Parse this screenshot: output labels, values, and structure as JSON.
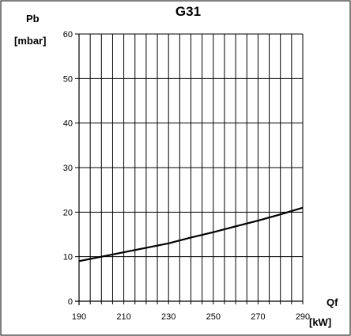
{
  "chart_data": {
    "type": "line",
    "title": "G31",
    "ylabel": {
      "line1": "Pb",
      "line2": "[mbar]"
    },
    "xlabel": {
      "line1": "Qf",
      "line2": "[kW]"
    },
    "xlim": [
      190,
      290
    ],
    "ylim": [
      0,
      60
    ],
    "x_ticks": [
      190,
      210,
      230,
      250,
      270,
      290
    ],
    "y_ticks": [
      0,
      10,
      20,
      30,
      40,
      50,
      60
    ],
    "vertical_grid_step": 5,
    "horizontal_grid_step": 10,
    "grid": true,
    "line_color": "#000000",
    "series": [
      {
        "x": [
          190,
          200,
          210,
          220,
          230,
          240,
          250,
          260,
          270,
          280,
          290
        ],
        "y": [
          9,
          10,
          11,
          12,
          13,
          14.3,
          15.5,
          16.8,
          18.1,
          19.5,
          21
        ]
      }
    ]
  }
}
